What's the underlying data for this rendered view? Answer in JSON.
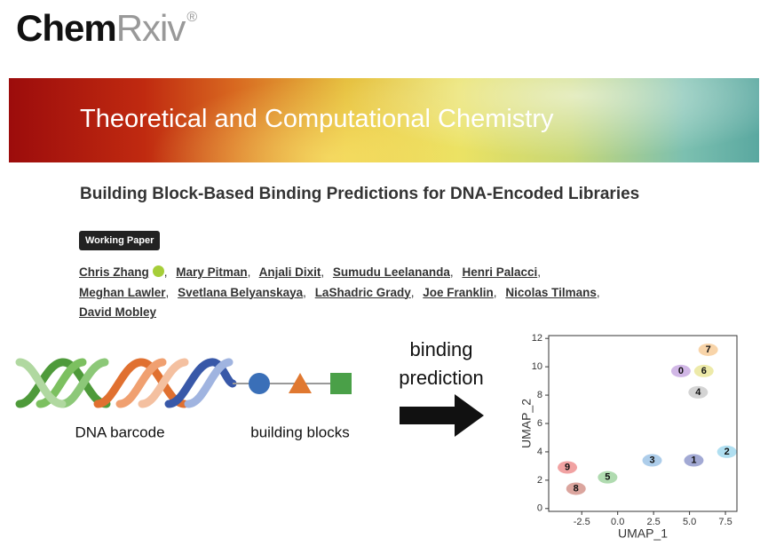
{
  "logo": {
    "brand": "Chem",
    "suffix": "Rxiv",
    "mark": "®"
  },
  "banner": {
    "title": "Theoretical and Computational Chemistry"
  },
  "article": {
    "title": "Building Block-Based Binding Predictions for DNA-Encoded Libraries",
    "badge": "Working Paper",
    "authors": [
      "Chris Zhang",
      "Mary Pitman",
      "Anjali Dixit",
      "Sumudu Leelananda",
      "Henri Palacci",
      "Meghan Lawler",
      "Svetlana Belyanskaya",
      "LaShadric Grady",
      "Joe Franklin",
      "Nicolas Tilmans",
      "David Mobley"
    ],
    "author_separator": ","
  },
  "figure": {
    "dna_label": "DNA barcode",
    "blocks_label": "building blocks",
    "arrow_label": [
      "binding",
      "prediction"
    ],
    "umap": {
      "xlabel": "UMAP_1",
      "ylabel": "UMAP_2",
      "xlim": [
        -4.8,
        8.3
      ],
      "ylim": [
        -0.2,
        12.2
      ],
      "xticks": [
        -2.5,
        {
          "value": 0,
          "label": "0.0"
        },
        2.5,
        {
          "value": 5,
          "label": "5.0"
        },
        7.5
      ],
      "yticks": [
        0,
        2,
        4,
        6,
        8,
        10,
        12
      ],
      "clusters": [
        {
          "label": "7",
          "x": 6.3,
          "y": 11.2,
          "color": "#f0a040"
        },
        {
          "label": "0",
          "x": 4.4,
          "y": 9.7,
          "color": "#9a60c8"
        },
        {
          "label": "6",
          "x": 6.0,
          "y": 9.7,
          "color": "#d8d040"
        },
        {
          "label": "4",
          "x": 5.6,
          "y": 8.2,
          "color": "#a0a0a0"
        },
        {
          "label": "3",
          "x": 2.4,
          "y": 3.4,
          "color": "#4a90d0"
        },
        {
          "label": "1",
          "x": 5.3,
          "y": 3.4,
          "color": "#3040a0"
        },
        {
          "label": "2",
          "x": 7.6,
          "y": 4.0,
          "color": "#50b8e0"
        },
        {
          "label": "9",
          "x": -3.5,
          "y": 2.9,
          "color": "#e03030"
        },
        {
          "label": "8",
          "x": -2.9,
          "y": 1.4,
          "color": "#b03828"
        },
        {
          "label": "5",
          "x": -0.7,
          "y": 2.2,
          "color": "#50b050"
        }
      ]
    }
  }
}
